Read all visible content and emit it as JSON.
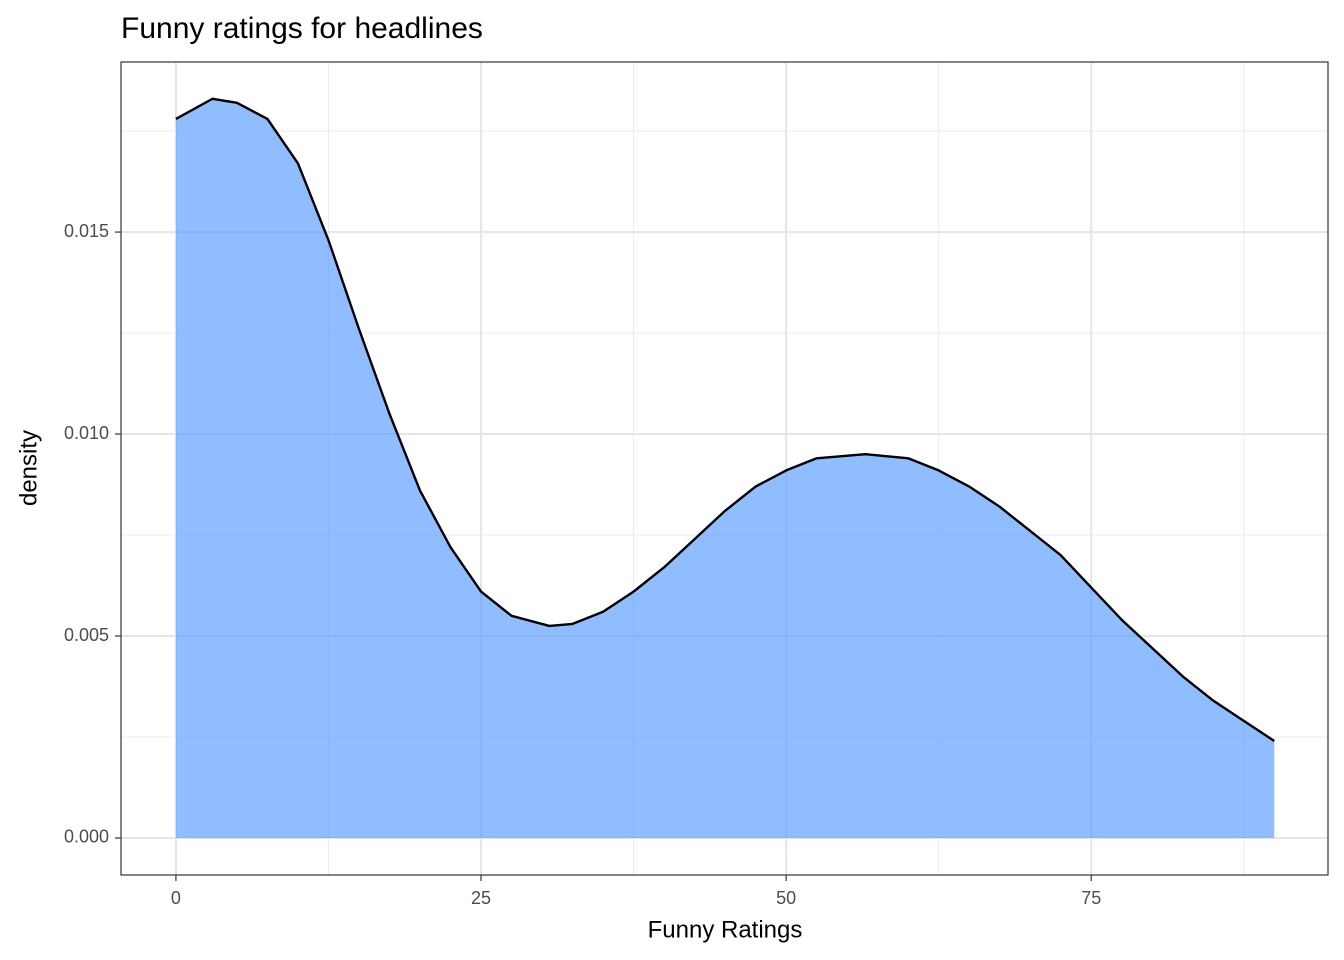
{
  "chart_data": {
    "type": "area",
    "title": "Funny ratings for headlines",
    "xlabel": "Funny Ratings",
    "ylabel": "density",
    "x": [
      0,
      3,
      5,
      7.5,
      10,
      12.5,
      15,
      17.5,
      20,
      22.5,
      25,
      27.5,
      30.6,
      32.5,
      35,
      37.5,
      40,
      42.5,
      45,
      47.5,
      50,
      52.5,
      56.5,
      60,
      62.5,
      65,
      67.5,
      70,
      72.5,
      75,
      77.5,
      80,
      82.5,
      85,
      87.5,
      90
    ],
    "values": [
      0.0178,
      0.0183,
      0.0182,
      0.0178,
      0.0167,
      0.0148,
      0.0126,
      0.0105,
      0.0086,
      0.0072,
      0.0061,
      0.0055,
      0.00525,
      0.0053,
      0.0056,
      0.0061,
      0.0067,
      0.0074,
      0.0081,
      0.0087,
      0.0091,
      0.0094,
      0.0095,
      0.0094,
      0.0091,
      0.0087,
      0.0082,
      0.0076,
      0.007,
      0.0062,
      0.0054,
      0.0047,
      0.004,
      0.0034,
      0.0029,
      0.0024
    ],
    "color": "#5599ff",
    "alpha": 0.65,
    "line_color": "#000000",
    "xlim": [
      -4.5,
      94.4
    ],
    "ylim": [
      -0.000916,
      0.01921
    ],
    "xticks": [
      0,
      25,
      50,
      75
    ],
    "yticks": [
      {
        "value": 0,
        "label": "0.000"
      },
      {
        "value": 0.005,
        "label": "0.005"
      },
      {
        "value": 0.01,
        "label": "0.010"
      },
      {
        "value": 0.015,
        "label": "0.015"
      }
    ],
    "grid": true,
    "minor_grid": true
  }
}
